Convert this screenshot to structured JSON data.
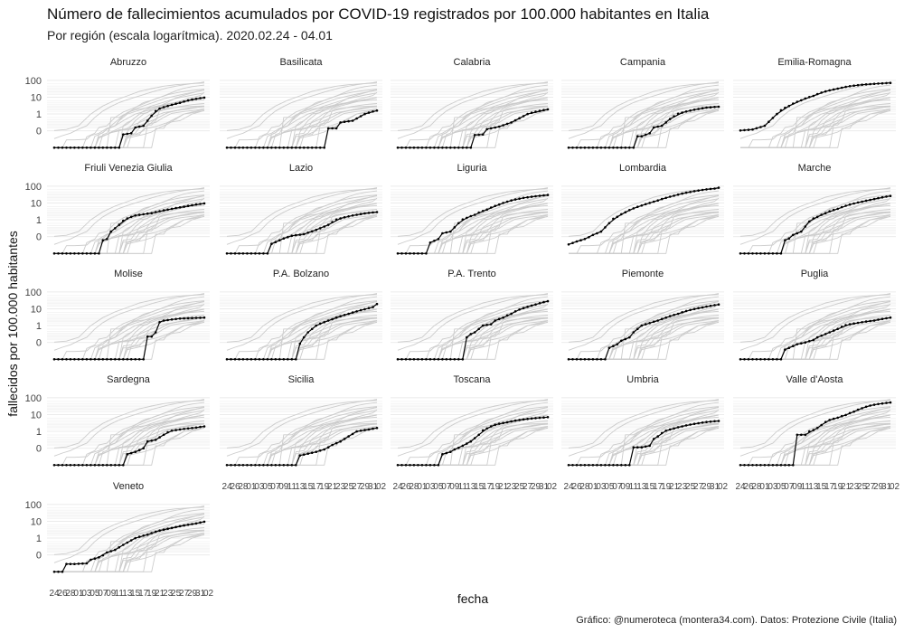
{
  "title": "Número de fallecimientos acumulados por COVID-19 registrados  por 100.000 habitantes en Italia",
  "subtitle": "Por región (escala logarítmica). 2020.02.24 - 04.01",
  "caption": "Gráfico: @numeroteca (montera34.com). Datos: Protezione Civile (Italia)",
  "colors": {
    "highlight": "#000000",
    "background_lines": "#cccccc",
    "strip_text": "#222222",
    "axis_text": "#444444",
    "grid": "#ebebeb"
  },
  "chart_data": {
    "type": "line",
    "facets": "small-multiples, one panel per region; black = region, grey = all other regions",
    "xlabel": "fecha",
    "ylabel": "fallecidos por 100.000 habitantes",
    "y_scale": "log",
    "y_ticks": [
      "100",
      "10",
      "1",
      "0"
    ],
    "x_ticks": [
      "24",
      "26",
      "28",
      "01",
      "03",
      "05",
      "07",
      "09",
      "11",
      "13",
      "15",
      "17",
      "19",
      "21",
      "23",
      "25",
      "27",
      "29",
      "31",
      "02"
    ],
    "x_range_days": [
      0,
      37
    ],
    "grid": true,
    "series": [
      {
        "name": "Abruzzo",
        "values": [
          [
            0,
            -1.5
          ],
          [
            16,
            -1.5
          ],
          [
            17,
            -0.3
          ],
          [
            19,
            -0.2
          ],
          [
            20,
            0.2
          ],
          [
            22,
            0.3
          ],
          [
            24,
            0.9
          ],
          [
            26,
            2.1
          ],
          [
            28,
            3.0
          ],
          [
            31,
            4.6
          ],
          [
            34,
            7.2
          ],
          [
            37,
            9.5
          ]
        ]
      },
      {
        "name": "Basilicata",
        "values": [
          [
            0,
            -1.5
          ],
          [
            24,
            -1.5
          ],
          [
            25,
            0.15
          ],
          [
            27,
            0.15
          ],
          [
            28,
            0.5
          ],
          [
            31,
            0.6
          ],
          [
            34,
            1.0
          ],
          [
            37,
            1.6
          ]
        ]
      },
      {
        "name": "Calabria",
        "values": [
          [
            0,
            -1.5
          ],
          [
            18,
            -1.5
          ],
          [
            19,
            -0.35
          ],
          [
            21,
            -0.3
          ],
          [
            22,
            0.1
          ],
          [
            25,
            0.25
          ],
          [
            28,
            0.5
          ],
          [
            32,
            1.0
          ],
          [
            37,
            1.9
          ]
        ]
      },
      {
        "name": "Campania",
        "values": [
          [
            0,
            -1.5
          ],
          [
            16,
            -1.5
          ],
          [
            17,
            -0.45
          ],
          [
            18,
            -0.45
          ],
          [
            20,
            -0.2
          ],
          [
            21,
            0.2
          ],
          [
            23,
            0.3
          ],
          [
            25,
            0.7
          ],
          [
            28,
            1.2
          ],
          [
            31,
            1.8
          ],
          [
            34,
            2.4
          ],
          [
            37,
            2.7
          ]
        ]
      },
      {
        "name": "Emilia-Romagna",
        "values": [
          [
            0,
            0.02
          ],
          [
            3,
            0.08
          ],
          [
            6,
            0.3
          ],
          [
            9,
            1.0
          ],
          [
            12,
            3.0
          ],
          [
            15,
            6.5
          ],
          [
            18,
            12
          ],
          [
            21,
            22
          ],
          [
            24,
            32
          ],
          [
            27,
            45
          ],
          [
            30,
            55
          ],
          [
            33,
            62
          ],
          [
            37,
            70
          ]
        ]
      },
      {
        "name": "Friuli Venezia Giulia",
        "values": [
          [
            0,
            -1.5
          ],
          [
            11,
            -1.5
          ],
          [
            12,
            -0.3
          ],
          [
            13,
            -0.2
          ],
          [
            14,
            0.3
          ],
          [
            16,
            0.7
          ],
          [
            18,
            1.2
          ],
          [
            20,
            1.8
          ],
          [
            24,
            2.5
          ],
          [
            28,
            4.0
          ],
          [
            32,
            6.0
          ],
          [
            37,
            9.5
          ]
        ]
      },
      {
        "name": "Lazio",
        "values": [
          [
            0,
            -1.5
          ],
          [
            10,
            -1.5
          ],
          [
            11,
            -0.6
          ],
          [
            13,
            -0.3
          ],
          [
            14,
            -0.15
          ],
          [
            16,
            0.05
          ],
          [
            19,
            0.15
          ],
          [
            22,
            0.4
          ],
          [
            25,
            0.7
          ],
          [
            28,
            1.2
          ],
          [
            31,
            1.8
          ],
          [
            34,
            2.4
          ],
          [
            37,
            2.9
          ]
        ]
      },
      {
        "name": "Liguria",
        "values": [
          [
            0,
            -1.5
          ],
          [
            7,
            -1.5
          ],
          [
            8,
            -0.5
          ],
          [
            10,
            -0.2
          ],
          [
            11,
            0.2
          ],
          [
            13,
            0.3
          ],
          [
            15,
            0.8
          ],
          [
            17,
            1.3
          ],
          [
            19,
            2.0
          ],
          [
            22,
            4.0
          ],
          [
            25,
            8.0
          ],
          [
            28,
            14
          ],
          [
            31,
            20
          ],
          [
            34,
            25
          ],
          [
            37,
            30
          ]
        ]
      },
      {
        "name": "Lombardia",
        "values": [
          [
            0,
            -0.65
          ],
          [
            2,
            -0.4
          ],
          [
            4,
            -0.2
          ],
          [
            6,
            0.1
          ],
          [
            8,
            0.3
          ],
          [
            10,
            0.8
          ],
          [
            12,
            1.5
          ],
          [
            14,
            2.8
          ],
          [
            16,
            4.8
          ],
          [
            18,
            7.0
          ],
          [
            20,
            10
          ],
          [
            22,
            14
          ],
          [
            24,
            20
          ],
          [
            26,
            27
          ],
          [
            28,
            36
          ],
          [
            30,
            45
          ],
          [
            32,
            55
          ],
          [
            34,
            64
          ],
          [
            36,
            72
          ],
          [
            37,
            80
          ]
        ]
      },
      {
        "name": "Marche",
        "values": [
          [
            0,
            -1.5
          ],
          [
            10,
            -1.5
          ],
          [
            11,
            -0.3
          ],
          [
            12,
            -0.15
          ],
          [
            13,
            0.1
          ],
          [
            15,
            0.3
          ],
          [
            17,
            0.9
          ],
          [
            19,
            1.5
          ],
          [
            21,
            2.5
          ],
          [
            24,
            4.5
          ],
          [
            27,
            8.0
          ],
          [
            30,
            12
          ],
          [
            33,
            17
          ],
          [
            37,
            26
          ]
        ]
      },
      {
        "name": "Molise",
        "values": [
          [
            0,
            -1.5
          ],
          [
            22,
            -1.5
          ],
          [
            23,
            0.35
          ],
          [
            24,
            0.35
          ],
          [
            25,
            0.6
          ],
          [
            26,
            1.6
          ],
          [
            27,
            2.0
          ],
          [
            29,
            2.3
          ],
          [
            31,
            2.6
          ],
          [
            34,
            2.8
          ],
          [
            37,
            3.0
          ]
        ]
      },
      {
        "name": "P.A. Bolzano",
        "values": [
          [
            0,
            -1.5
          ],
          [
            17,
            -1.5
          ],
          [
            18,
            -0.1
          ],
          [
            19,
            0.3
          ],
          [
            20,
            0.6
          ],
          [
            22,
            1.0
          ],
          [
            24,
            1.6
          ],
          [
            26,
            2.4
          ],
          [
            28,
            3.6
          ],
          [
            30,
            5.0
          ],
          [
            32,
            7.0
          ],
          [
            34,
            9.5
          ],
          [
            36,
            12.5
          ],
          [
            37,
            19
          ]
        ]
      },
      {
        "name": "P.A. Trento",
        "values": [
          [
            0,
            -1.5
          ],
          [
            16,
            -1.5
          ],
          [
            17,
            0.3
          ],
          [
            18,
            0.5
          ],
          [
            19,
            0.6
          ],
          [
            21,
            1.0
          ],
          [
            23,
            1.2
          ],
          [
            24,
            2.0
          ],
          [
            26,
            3.0
          ],
          [
            28,
            5.0
          ],
          [
            30,
            9.0
          ],
          [
            32,
            13
          ],
          [
            34,
            18
          ],
          [
            37,
            28
          ]
        ]
      },
      {
        "name": "Piemonte",
        "values": [
          [
            0,
            -1.5
          ],
          [
            9,
            -1.5
          ],
          [
            10,
            -0.45
          ],
          [
            12,
            -0.15
          ],
          [
            13,
            0.1
          ],
          [
            15,
            0.3
          ],
          [
            16,
            0.6
          ],
          [
            18,
            1.0
          ],
          [
            20,
            1.4
          ],
          [
            22,
            2.0
          ],
          [
            24,
            3.0
          ],
          [
            27,
            5.0
          ],
          [
            30,
            8.5
          ],
          [
            33,
            12
          ],
          [
            37,
            18
          ]
        ]
      },
      {
        "name": "Puglia",
        "values": [
          [
            0,
            -1.5
          ],
          [
            10,
            -1.5
          ],
          [
            11,
            -0.6
          ],
          [
            13,
            -0.3
          ],
          [
            14,
            -0.15
          ],
          [
            16,
            0.0
          ],
          [
            18,
            0.15
          ],
          [
            19,
            0.3
          ],
          [
            21,
            0.5
          ],
          [
            24,
            0.8
          ],
          [
            27,
            1.2
          ],
          [
            30,
            1.6
          ],
          [
            33,
            2.0
          ],
          [
            37,
            3.0
          ]
        ]
      },
      {
        "name": "Sardegna",
        "values": [
          [
            0,
            -1.5
          ],
          [
            17,
            -1.5
          ],
          [
            18,
            -0.5
          ],
          [
            20,
            -0.3
          ],
          [
            22,
            0.0
          ],
          [
            23,
            0.4
          ],
          [
            25,
            0.5
          ],
          [
            27,
            0.8
          ],
          [
            29,
            1.1
          ],
          [
            32,
            1.4
          ],
          [
            35,
            1.7
          ],
          [
            37,
            2.0
          ]
        ]
      },
      {
        "name": "Sicilia",
        "values": [
          [
            0,
            -1.5
          ],
          [
            17,
            -1.5
          ],
          [
            18,
            -0.6
          ],
          [
            20,
            -0.45
          ],
          [
            22,
            -0.3
          ],
          [
            24,
            -0.1
          ],
          [
            26,
            0.2
          ],
          [
            28,
            0.4
          ],
          [
            30,
            0.7
          ],
          [
            32,
            1.0
          ],
          [
            35,
            1.3
          ],
          [
            37,
            1.6
          ]
        ]
      },
      {
        "name": "Toscana",
        "values": [
          [
            0,
            -1.5
          ],
          [
            10,
            -1.5
          ],
          [
            11,
            -0.5
          ],
          [
            13,
            -0.3
          ],
          [
            14,
            -0.1
          ],
          [
            16,
            0.15
          ],
          [
            18,
            0.4
          ],
          [
            20,
            0.8
          ],
          [
            22,
            1.5
          ],
          [
            24,
            2.5
          ],
          [
            27,
            3.5
          ],
          [
            30,
            4.8
          ],
          [
            33,
            5.8
          ],
          [
            37,
            7.0
          ]
        ]
      },
      {
        "name": "Umbria",
        "values": [
          [
            0,
            -1.5
          ],
          [
            15,
            -1.5
          ],
          [
            16,
            0.05
          ],
          [
            18,
            0.05
          ],
          [
            20,
            0.15
          ],
          [
            21,
            0.55
          ],
          [
            22,
            0.7
          ],
          [
            24,
            1.1
          ],
          [
            26,
            1.5
          ],
          [
            28,
            2.0
          ],
          [
            31,
            2.8
          ],
          [
            34,
            3.6
          ],
          [
            37,
            4.2
          ]
        ]
      },
      {
        "name": "Valle d'Aosta",
        "values": [
          [
            0,
            -1.5
          ],
          [
            13,
            -1.5
          ],
          [
            14,
            0.8
          ],
          [
            16,
            0.8
          ],
          [
            18,
            1.2
          ],
          [
            19,
            1.6
          ],
          [
            20,
            2.4
          ],
          [
            22,
            4.8
          ],
          [
            24,
            6.5
          ],
          [
            26,
            9.5
          ],
          [
            28,
            15
          ],
          [
            30,
            24
          ],
          [
            32,
            34
          ],
          [
            34,
            42
          ],
          [
            37,
            52
          ]
        ]
      },
      {
        "name": "Veneto",
        "values": [
          [
            0,
            -1.5
          ],
          [
            2,
            -1.5
          ],
          [
            3,
            -0.75
          ],
          [
            5,
            -0.75
          ],
          [
            8,
            -0.7
          ],
          [
            9,
            -0.4
          ],
          [
            11,
            -0.2
          ],
          [
            13,
            0.15
          ],
          [
            15,
            0.3
          ],
          [
            17,
            0.6
          ],
          [
            20,
            1.0
          ],
          [
            23,
            1.6
          ],
          [
            26,
            2.8
          ],
          [
            29,
            4.0
          ],
          [
            32,
            5.6
          ],
          [
            35,
            7.5
          ],
          [
            37,
            9.5
          ]
        ]
      }
    ]
  }
}
